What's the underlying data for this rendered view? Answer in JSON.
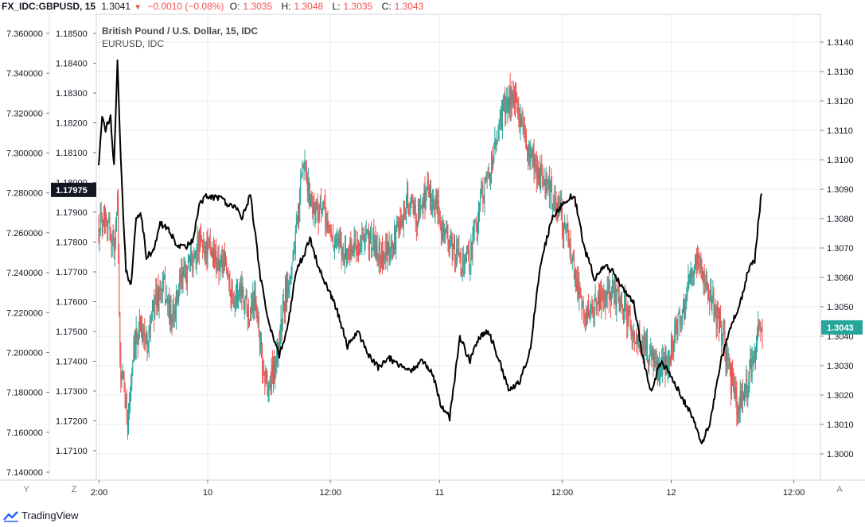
{
  "header": {
    "symbol": "FX_IDC:GBPUSD, 15",
    "last": "1.3041",
    "arrow": "▼",
    "change": "−0.0010 (−0.08%)",
    "o_label": "O:",
    "o_value": "1.3035",
    "h_label": "H:",
    "h_value": "1.3048",
    "l_label": "L:",
    "l_value": "1.3035",
    "c_label": "C:",
    "c_value": "1.3043"
  },
  "legend": {
    "main": "British Pound / U.S. Dollar, 15, IDC",
    "overlay": "EURUSD, IDC"
  },
  "bottom": {
    "btn_y": "Y",
    "btn_z": "Z",
    "btn_a": "A"
  },
  "brand": {
    "name": "TradingView",
    "icon": "tradingview-logo-icon"
  },
  "colors": {
    "up": "#26a69a",
    "down": "#ef5350",
    "overlay_line": "#000000",
    "grid": "#e9ecf2"
  },
  "chart_data": {
    "type": "candlestick",
    "title": "British Pound / U.S. Dollar, 15, IDC",
    "left_axis_1": {
      "ticks": [
        "7.360000",
        "7.340000",
        "7.320000",
        "7.300000",
        "7.280000",
        "7.260000",
        "7.240000",
        "7.220000",
        "7.200000",
        "7.180000",
        "7.160000",
        "7.140000"
      ],
      "ylim": [
        7.14,
        7.36
      ]
    },
    "left_axis_2": {
      "ticks": [
        "1.18500",
        "1.18400",
        "1.18300",
        "1.18200",
        "1.18100",
        "1.18000",
        "1.17900",
        "1.17800",
        "1.17700",
        "1.17600",
        "1.17500",
        "1.17400",
        "1.17300",
        "1.17200",
        "1.17100"
      ],
      "ylim": [
        1.171,
        1.185
      ],
      "current_label": "1.17975"
    },
    "right_axis": {
      "ticks": [
        "1.3140",
        "1.3130",
        "1.3120",
        "1.3110",
        "1.3100",
        "1.3090",
        "1.3080",
        "1.3070",
        "1.3060",
        "1.3050",
        "1.3040",
        "1.3030",
        "1.3020",
        "1.3010",
        "1.3000"
      ],
      "ylim": [
        1.2996,
        1.3145
      ],
      "current_label": "1.3043"
    },
    "x_ticks": [
      "2:00",
      "10",
      "12:00",
      "11",
      "12:00",
      "12",
      "12:00"
    ],
    "main_series": {
      "name": "GBPUSD",
      "keypoints": [
        [
          0,
          1.3077
        ],
        [
          8,
          1.3083
        ],
        [
          14,
          1.3075
        ],
        [
          18,
          1.307
        ],
        [
          22,
          1.3085
        ],
        [
          25,
          1.303
        ],
        [
          30,
          1.302
        ],
        [
          34,
          1.3012
        ],
        [
          40,
          1.303
        ],
        [
          48,
          1.3045
        ],
        [
          56,
          1.3038
        ],
        [
          66,
          1.3052
        ],
        [
          76,
          1.3057
        ],
        [
          86,
          1.3045
        ],
        [
          96,
          1.3058
        ],
        [
          108,
          1.3065
        ],
        [
          118,
          1.3072
        ],
        [
          128,
          1.307
        ],
        [
          140,
          1.3065
        ],
        [
          150,
          1.3063
        ],
        [
          158,
          1.3053
        ],
        [
          168,
          1.3057
        ],
        [
          176,
          1.3048
        ],
        [
          184,
          1.3055
        ],
        [
          192,
          1.303
        ],
        [
          200,
          1.3022
        ],
        [
          210,
          1.3035
        ],
        [
          220,
          1.3055
        ],
        [
          232,
          1.3074
        ],
        [
          240,
          1.3098
        ],
        [
          250,
          1.3085
        ],
        [
          264,
          1.3082
        ],
        [
          276,
          1.3072
        ],
        [
          290,
          1.3068
        ],
        [
          304,
          1.3071
        ],
        [
          318,
          1.3073
        ],
        [
          330,
          1.3068
        ],
        [
          342,
          1.3068
        ],
        [
          352,
          1.3077
        ],
        [
          362,
          1.3086
        ],
        [
          374,
          1.3081
        ],
        [
          386,
          1.309
        ],
        [
          398,
          1.3082
        ],
        [
          412,
          1.3071
        ],
        [
          424,
          1.3065
        ],
        [
          436,
          1.3068
        ],
        [
          448,
          1.3086
        ],
        [
          458,
          1.3095
        ],
        [
          468,
          1.3108
        ],
        [
          476,
          1.3118
        ],
        [
          484,
          1.3122
        ],
        [
          494,
          1.3115
        ],
        [
          504,
          1.3102
        ],
        [
          516,
          1.3095
        ],
        [
          528,
          1.309
        ],
        [
          540,
          1.3083
        ],
        [
          552,
          1.3072
        ],
        [
          564,
          1.3055
        ],
        [
          576,
          1.3046
        ],
        [
          590,
          1.3052
        ],
        [
          604,
          1.3055
        ],
        [
          616,
          1.305
        ],
        [
          630,
          1.304
        ],
        [
          642,
          1.3036
        ],
        [
          656,
          1.3028
        ],
        [
          666,
          1.303
        ],
        [
          678,
          1.3042
        ],
        [
          690,
          1.3055
        ],
        [
          702,
          1.3066
        ],
        [
          712,
          1.306
        ],
        [
          722,
          1.305
        ],
        [
          734,
          1.3038
        ],
        [
          742,
          1.3025
        ],
        [
          750,
          1.3015
        ],
        [
          758,
          1.302
        ],
        [
          766,
          1.303
        ],
        [
          774,
          1.3042
        ]
      ],
      "count": 780
    },
    "overlay_series": {
      "name": "EURUSD",
      "keypoints": [
        [
          0,
          1.1805
        ],
        [
          4,
          1.1822
        ],
        [
          8,
          1.1818
        ],
        [
          14,
          1.1822
        ],
        [
          18,
          1.1805
        ],
        [
          22,
          1.184
        ],
        [
          26,
          1.1808
        ],
        [
          32,
          1.177
        ],
        [
          38,
          1.1766
        ],
        [
          44,
          1.1788
        ],
        [
          50,
          1.1789
        ],
        [
          56,
          1.1775
        ],
        [
          64,
          1.1777
        ],
        [
          72,
          1.1786
        ],
        [
          80,
          1.1785
        ],
        [
          90,
          1.178
        ],
        [
          100,
          1.1778
        ],
        [
          110,
          1.178
        ],
        [
          118,
          1.1792
        ],
        [
          126,
          1.1796
        ],
        [
          134,
          1.1795
        ],
        [
          142,
          1.1795
        ],
        [
          150,
          1.1793
        ],
        [
          160,
          1.1792
        ],
        [
          168,
          1.1788
        ],
        [
          178,
          1.1796
        ],
        [
          190,
          1.1768
        ],
        [
          200,
          1.1752
        ],
        [
          212,
          1.1742
        ],
        [
          222,
          1.1752
        ],
        [
          232,
          1.1771
        ],
        [
          240,
          1.1775
        ],
        [
          248,
          1.1781
        ],
        [
          258,
          1.1772
        ],
        [
          268,
          1.1765
        ],
        [
          280,
          1.1757
        ],
        [
          292,
          1.1745
        ],
        [
          304,
          1.175
        ],
        [
          316,
          1.1742
        ],
        [
          328,
          1.1738
        ],
        [
          342,
          1.1741
        ],
        [
          356,
          1.1738
        ],
        [
          368,
          1.1737
        ],
        [
          380,
          1.174
        ],
        [
          392,
          1.1736
        ],
        [
          402,
          1.1725
        ],
        [
          412,
          1.1721
        ],
        [
          424,
          1.1748
        ],
        [
          436,
          1.174
        ],
        [
          446,
          1.1748
        ],
        [
          458,
          1.175
        ],
        [
          470,
          1.174
        ],
        [
          482,
          1.173
        ],
        [
          494,
          1.1733
        ],
        [
          506,
          1.1743
        ],
        [
          518,
          1.1772
        ],
        [
          532,
          1.1788
        ],
        [
          546,
          1.1793
        ],
        [
          558,
          1.1796
        ],
        [
          570,
          1.1778
        ],
        [
          582,
          1.1768
        ],
        [
          594,
          1.1772
        ],
        [
          604,
          1.177
        ],
        [
          616,
          1.1764
        ],
        [
          628,
          1.176
        ],
        [
          638,
          1.1742
        ],
        [
          648,
          1.173
        ],
        [
          660,
          1.174
        ],
        [
          672,
          1.1735
        ],
        [
          684,
          1.1728
        ],
        [
          696,
          1.1722
        ],
        [
          708,
          1.1712
        ],
        [
          718,
          1.172
        ],
        [
          730,
          1.174
        ],
        [
          742,
          1.1752
        ],
        [
          752,
          1.1758
        ],
        [
          762,
          1.177
        ],
        [
          770,
          1.1774
        ],
        [
          778,
          1.1797
        ]
      ]
    }
  }
}
